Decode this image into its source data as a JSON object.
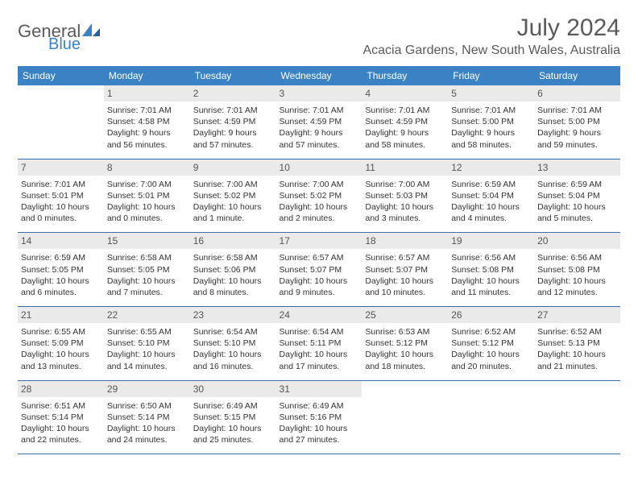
{
  "logo": {
    "text1": "General",
    "text2": "Blue"
  },
  "title": "July 2024",
  "location": "Acacia Gardens, New South Wales, Australia",
  "colors": {
    "header_bg": "#3b82c4",
    "daynum_bg": "#eaeaea",
    "row_border": "#3b6fa5"
  },
  "day_names": [
    "Sunday",
    "Monday",
    "Tuesday",
    "Wednesday",
    "Thursday",
    "Friday",
    "Saturday"
  ],
  "weeks": [
    [
      {
        "day": "",
        "sunrise": "",
        "sunset": "",
        "daylight": ""
      },
      {
        "day": "1",
        "sunrise": "Sunrise: 7:01 AM",
        "sunset": "Sunset: 4:58 PM",
        "daylight": "Daylight: 9 hours and 56 minutes."
      },
      {
        "day": "2",
        "sunrise": "Sunrise: 7:01 AM",
        "sunset": "Sunset: 4:59 PM",
        "daylight": "Daylight: 9 hours and 57 minutes."
      },
      {
        "day": "3",
        "sunrise": "Sunrise: 7:01 AM",
        "sunset": "Sunset: 4:59 PM",
        "daylight": "Daylight: 9 hours and 57 minutes."
      },
      {
        "day": "4",
        "sunrise": "Sunrise: 7:01 AM",
        "sunset": "Sunset: 4:59 PM",
        "daylight": "Daylight: 9 hours and 58 minutes."
      },
      {
        "day": "5",
        "sunrise": "Sunrise: 7:01 AM",
        "sunset": "Sunset: 5:00 PM",
        "daylight": "Daylight: 9 hours and 58 minutes."
      },
      {
        "day": "6",
        "sunrise": "Sunrise: 7:01 AM",
        "sunset": "Sunset: 5:00 PM",
        "daylight": "Daylight: 9 hours and 59 minutes."
      }
    ],
    [
      {
        "day": "7",
        "sunrise": "Sunrise: 7:01 AM",
        "sunset": "Sunset: 5:01 PM",
        "daylight": "Daylight: 10 hours and 0 minutes."
      },
      {
        "day": "8",
        "sunrise": "Sunrise: 7:00 AM",
        "sunset": "Sunset: 5:01 PM",
        "daylight": "Daylight: 10 hours and 0 minutes."
      },
      {
        "day": "9",
        "sunrise": "Sunrise: 7:00 AM",
        "sunset": "Sunset: 5:02 PM",
        "daylight": "Daylight: 10 hours and 1 minute."
      },
      {
        "day": "10",
        "sunrise": "Sunrise: 7:00 AM",
        "sunset": "Sunset: 5:02 PM",
        "daylight": "Daylight: 10 hours and 2 minutes."
      },
      {
        "day": "11",
        "sunrise": "Sunrise: 7:00 AM",
        "sunset": "Sunset: 5:03 PM",
        "daylight": "Daylight: 10 hours and 3 minutes."
      },
      {
        "day": "12",
        "sunrise": "Sunrise: 6:59 AM",
        "sunset": "Sunset: 5:04 PM",
        "daylight": "Daylight: 10 hours and 4 minutes."
      },
      {
        "day": "13",
        "sunrise": "Sunrise: 6:59 AM",
        "sunset": "Sunset: 5:04 PM",
        "daylight": "Daylight: 10 hours and 5 minutes."
      }
    ],
    [
      {
        "day": "14",
        "sunrise": "Sunrise: 6:59 AM",
        "sunset": "Sunset: 5:05 PM",
        "daylight": "Daylight: 10 hours and 6 minutes."
      },
      {
        "day": "15",
        "sunrise": "Sunrise: 6:58 AM",
        "sunset": "Sunset: 5:05 PM",
        "daylight": "Daylight: 10 hours and 7 minutes."
      },
      {
        "day": "16",
        "sunrise": "Sunrise: 6:58 AM",
        "sunset": "Sunset: 5:06 PM",
        "daylight": "Daylight: 10 hours and 8 minutes."
      },
      {
        "day": "17",
        "sunrise": "Sunrise: 6:57 AM",
        "sunset": "Sunset: 5:07 PM",
        "daylight": "Daylight: 10 hours and 9 minutes."
      },
      {
        "day": "18",
        "sunrise": "Sunrise: 6:57 AM",
        "sunset": "Sunset: 5:07 PM",
        "daylight": "Daylight: 10 hours and 10 minutes."
      },
      {
        "day": "19",
        "sunrise": "Sunrise: 6:56 AM",
        "sunset": "Sunset: 5:08 PM",
        "daylight": "Daylight: 10 hours and 11 minutes."
      },
      {
        "day": "20",
        "sunrise": "Sunrise: 6:56 AM",
        "sunset": "Sunset: 5:08 PM",
        "daylight": "Daylight: 10 hours and 12 minutes."
      }
    ],
    [
      {
        "day": "21",
        "sunrise": "Sunrise: 6:55 AM",
        "sunset": "Sunset: 5:09 PM",
        "daylight": "Daylight: 10 hours and 13 minutes."
      },
      {
        "day": "22",
        "sunrise": "Sunrise: 6:55 AM",
        "sunset": "Sunset: 5:10 PM",
        "daylight": "Daylight: 10 hours and 14 minutes."
      },
      {
        "day": "23",
        "sunrise": "Sunrise: 6:54 AM",
        "sunset": "Sunset: 5:10 PM",
        "daylight": "Daylight: 10 hours and 16 minutes."
      },
      {
        "day": "24",
        "sunrise": "Sunrise: 6:54 AM",
        "sunset": "Sunset: 5:11 PM",
        "daylight": "Daylight: 10 hours and 17 minutes."
      },
      {
        "day": "25",
        "sunrise": "Sunrise: 6:53 AM",
        "sunset": "Sunset: 5:12 PM",
        "daylight": "Daylight: 10 hours and 18 minutes."
      },
      {
        "day": "26",
        "sunrise": "Sunrise: 6:52 AM",
        "sunset": "Sunset: 5:12 PM",
        "daylight": "Daylight: 10 hours and 20 minutes."
      },
      {
        "day": "27",
        "sunrise": "Sunrise: 6:52 AM",
        "sunset": "Sunset: 5:13 PM",
        "daylight": "Daylight: 10 hours and 21 minutes."
      }
    ],
    [
      {
        "day": "28",
        "sunrise": "Sunrise: 6:51 AM",
        "sunset": "Sunset: 5:14 PM",
        "daylight": "Daylight: 10 hours and 22 minutes."
      },
      {
        "day": "29",
        "sunrise": "Sunrise: 6:50 AM",
        "sunset": "Sunset: 5:14 PM",
        "daylight": "Daylight: 10 hours and 24 minutes."
      },
      {
        "day": "30",
        "sunrise": "Sunrise: 6:49 AM",
        "sunset": "Sunset: 5:15 PM",
        "daylight": "Daylight: 10 hours and 25 minutes."
      },
      {
        "day": "31",
        "sunrise": "Sunrise: 6:49 AM",
        "sunset": "Sunset: 5:16 PM",
        "daylight": "Daylight: 10 hours and 27 minutes."
      },
      {
        "day": "",
        "sunrise": "",
        "sunset": "",
        "daylight": ""
      },
      {
        "day": "",
        "sunrise": "",
        "sunset": "",
        "daylight": ""
      },
      {
        "day": "",
        "sunrise": "",
        "sunset": "",
        "daylight": ""
      }
    ]
  ]
}
